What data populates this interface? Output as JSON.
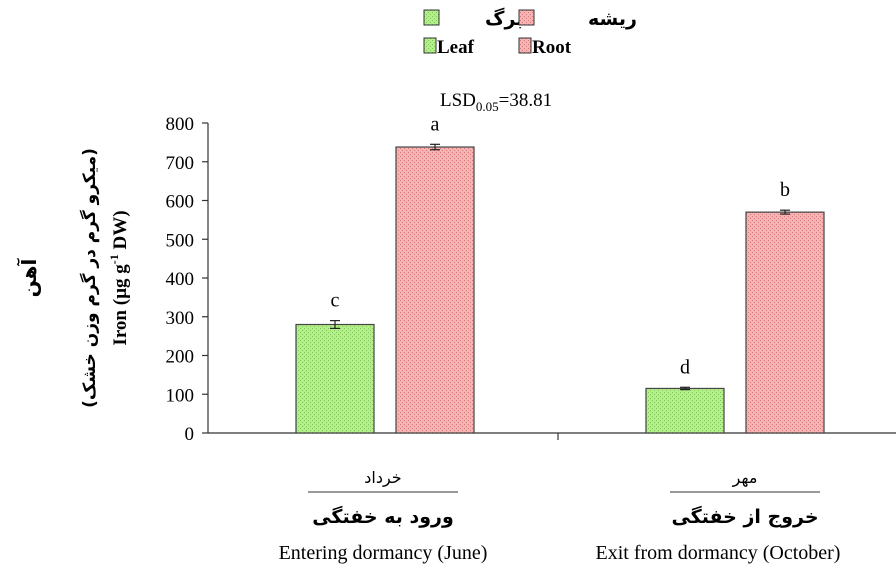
{
  "chart_data": {
    "type": "bar",
    "categories": [
      {
        "fa": "خرداد",
        "fa_bold": "ورود به خفتگی",
        "en": "Entering dormancy (June)"
      },
      {
        "fa": "مهر",
        "fa_bold": "خروج از خفتگی",
        "en": "Exit from dormancy (October)"
      }
    ],
    "series": [
      {
        "name": "Leaf",
        "name_fa": "برگ",
        "values": [
          280,
          115
        ],
        "errors": [
          10,
          3
        ],
        "letters": [
          "c",
          "d"
        ],
        "color": "#b3f08a"
      },
      {
        "name": "Root",
        "name_fa": "ریشه",
        "values": [
          738,
          570
        ],
        "errors": [
          7,
          5
        ],
        "letters": [
          "a",
          "b"
        ],
        "color": "#f6b3b3"
      }
    ],
    "annotation": {
      "main": "LSD",
      "sub": "0.05",
      "rest": "=38.81"
    },
    "ylabel": {
      "fa": "آهن",
      "fa_unit": "(میکرو گرم در گرم وزن خشک)",
      "en_pre": "Iron (µg g",
      "en_sup": "-1",
      "en_post": " DW)"
    },
    "ylim": [
      0,
      800
    ],
    "yticks": [
      0,
      100,
      200,
      300,
      400,
      500,
      600,
      700,
      800
    ],
    "legend_position": "top-center",
    "grid": false
  }
}
